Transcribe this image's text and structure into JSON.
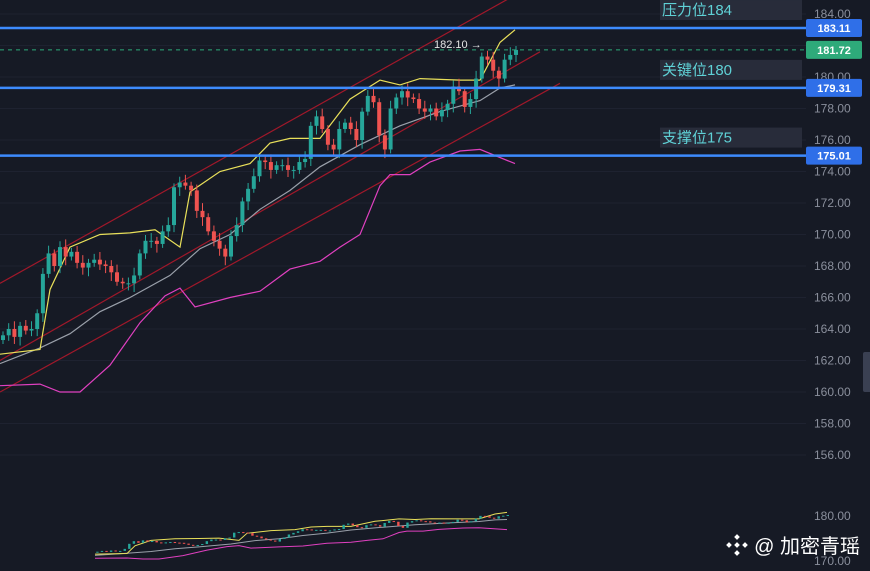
{
  "chart_data": {
    "type": "candlestick",
    "y_axis": {
      "range": [
        154.5,
        185.0
      ],
      "ticks": [
        "184.00",
        "182.00",
        "180.00",
        "178.00",
        "176.00",
        "174.00",
        "172.00",
        "170.00",
        "168.00",
        "166.00",
        "164.00",
        "162.00",
        "160.00",
        "158.00",
        "156.00"
      ]
    },
    "levels": [
      {
        "name": "resistance",
        "label": "压力位184",
        "price_tag": "183.11",
        "value": 183.11
      },
      {
        "name": "key",
        "label": "关键位180",
        "price_tag": "179.31",
        "value": 179.31
      },
      {
        "name": "support",
        "label": "支撑位175",
        "price_tag": "175.01",
        "value": 175.01
      }
    ],
    "last_price": {
      "tag": "181.72",
      "value": 181.72
    },
    "high_marker": {
      "label": "182.10 →",
      "value": 182.1
    },
    "closes": [
      163.6,
      164.0,
      163.5,
      164.2,
      163.9,
      164.0,
      165.0,
      167.5,
      168.8,
      168.0,
      169.2,
      168.6,
      168.9,
      168.2,
      167.9,
      168.2,
      168.4,
      168.1,
      168.0,
      167.6,
      167.0,
      166.9,
      166.9,
      167.4,
      168.8,
      169.6,
      169.6,
      169.4,
      170.2,
      170.6,
      173.0,
      173.3,
      173.1,
      172.8,
      171.5,
      171.1,
      170.2,
      169.6,
      169.1,
      168.6,
      169.9,
      170.6,
      172.1,
      172.9,
      173.7,
      174.7,
      174.6,
      174.1,
      174.4,
      174.4,
      174.1,
      174.1,
      174.6,
      174.8,
      176.9,
      177.5,
      176.7,
      175.7,
      175.4,
      176.7,
      177.1,
      176.7,
      176.0,
      177.8,
      178.8,
      178.4,
      176.3,
      175.4,
      178.0,
      178.7,
      179.1,
      178.7,
      178.6,
      178.0,
      177.8,
      178.0,
      177.5,
      177.9,
      178.3,
      179.4,
      179.1,
      178.1,
      178.6,
      179.9,
      181.3,
      181.1,
      180.4,
      179.9,
      181.1,
      181.4,
      181.72
    ],
    "bands": {
      "upper_band": [
        [
          0,
          162.4
        ],
        [
          40,
          162.7
        ],
        [
          50,
          166.5
        ],
        [
          70,
          169.2
        ],
        [
          100,
          170.0
        ],
        [
          130,
          170.1
        ],
        [
          155,
          170.3
        ],
        [
          180,
          169.2
        ],
        [
          190,
          172.7
        ],
        [
          220,
          174.0
        ],
        [
          250,
          174.5
        ],
        [
          270,
          175.8
        ],
        [
          290,
          176.1
        ],
        [
          320,
          176.1
        ],
        [
          350,
          178.6
        ],
        [
          380,
          179.8
        ],
        [
          400,
          179.5
        ],
        [
          420,
          179.9
        ],
        [
          460,
          179.8
        ],
        [
          480,
          179.8
        ],
        [
          500,
          182.2
        ],
        [
          515,
          183.0
        ]
      ],
      "middle_band": [
        [
          0,
          161.8
        ],
        [
          40,
          162.8
        ],
        [
          70,
          163.7
        ],
        [
          100,
          165.1
        ],
        [
          130,
          166.0
        ],
        [
          170,
          167.4
        ],
        [
          200,
          169.1
        ],
        [
          230,
          170.0
        ],
        [
          260,
          171.6
        ],
        [
          290,
          172.8
        ],
        [
          320,
          174.3
        ],
        [
          360,
          175.7
        ],
        [
          400,
          176.9
        ],
        [
          440,
          177.8
        ],
        [
          480,
          178.5
        ],
        [
          500,
          179.3
        ],
        [
          515,
          179.5
        ]
      ],
      "lower_band": [
        [
          0,
          160.4
        ],
        [
          40,
          160.5
        ],
        [
          60,
          160.0
        ],
        [
          80,
          160.0
        ],
        [
          110,
          161.7
        ],
        [
          140,
          164.4
        ],
        [
          165,
          166.1
        ],
        [
          180,
          166.6
        ],
        [
          195,
          165.4
        ],
        [
          230,
          166.0
        ],
        [
          260,
          166.4
        ],
        [
          290,
          167.8
        ],
        [
          320,
          168.3
        ],
        [
          340,
          169.2
        ],
        [
          360,
          170.0
        ],
        [
          380,
          173.1
        ],
        [
          390,
          173.8
        ],
        [
          410,
          173.8
        ],
        [
          430,
          174.6
        ],
        [
          460,
          175.3
        ],
        [
          480,
          175.4
        ],
        [
          515,
          174.5
        ]
      ],
      "channel_upper": [
        [
          0,
          166.9
        ],
        [
          515,
          185.2
        ]
      ],
      "channel_mid": [
        [
          0,
          162.0
        ],
        [
          540,
          181.6
        ]
      ],
      "channel_lower": [
        [
          0,
          160.0
        ],
        [
          560,
          179.6
        ]
      ]
    },
    "sub_panel": {
      "tick_labels": [
        "180.00",
        "170.00"
      ]
    }
  },
  "colors": {
    "up": "#26a69a",
    "down": "#ef5350",
    "level_line": "#3d8bfd",
    "upper_band": "#e9e05a",
    "middle_band": "#9aa0aa",
    "lower_band": "#e040c0",
    "channel": "#a0182a",
    "last_price_bg": "#2eaa7a",
    "level_tag_bg": "#2f6fe8"
  },
  "watermark": {
    "text": "@ 加密青瑶",
    "icon": "binance-diamond-icon"
  }
}
